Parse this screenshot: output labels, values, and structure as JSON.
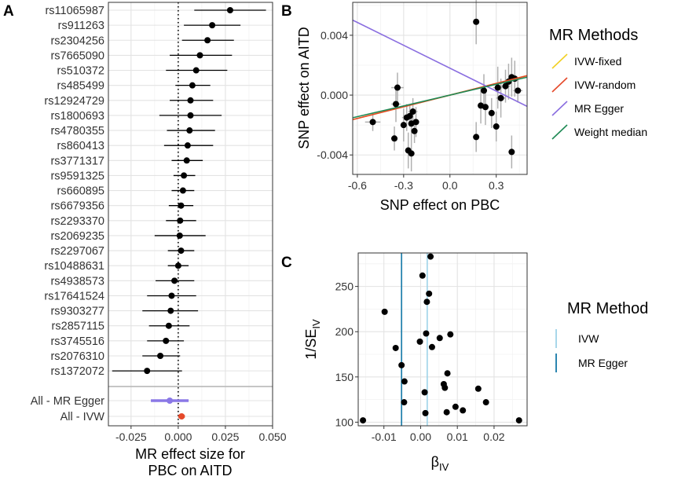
{
  "panel_labels": {
    "a": "A",
    "b": "B",
    "c": "C"
  },
  "colors": {
    "ivw_fixed": "#f2d024",
    "ivw_random": "#e5492a",
    "mr_egger_b": "#8a6ee0",
    "weight_median": "#1f8a55",
    "summary_egger": "#8a78e6",
    "summary_ivw": "#e5492a",
    "ivw_c": "#9ed3e8",
    "egger_c": "#1479a8"
  },
  "chart_data": [
    {
      "id": "forest",
      "type": "forest",
      "xlabel": "MR effect size for",
      "xlabel2": "PBC  on  AITD",
      "xlim": [
        -0.037,
        0.05
      ],
      "xticks": [
        -0.025,
        0.0,
        0.025,
        0.05
      ],
      "xtick_labels": [
        "-0.025",
        "0.000",
        "0.025",
        "0.050"
      ],
      "snps": [
        {
          "label": "rs11065987",
          "est": 0.0275,
          "lo": 0.0085,
          "hi": 0.0465
        },
        {
          "label": "rs911263",
          "est": 0.018,
          "lo": 0.003,
          "hi": 0.033
        },
        {
          "label": "rs2304256",
          "est": 0.0155,
          "lo": 0.002,
          "hi": 0.0295
        },
        {
          "label": "rs7665090",
          "est": 0.0115,
          "lo": -0.0045,
          "hi": 0.0285
        },
        {
          "label": "rs510372",
          "est": 0.0095,
          "lo": -0.0065,
          "hi": 0.026
        },
        {
          "label": "rs485499",
          "est": 0.0075,
          "lo": -0.0015,
          "hi": 0.017
        },
        {
          "label": "rs12924729",
          "est": 0.0065,
          "lo": -0.0045,
          "hi": 0.0185
        },
        {
          "label": "rs1800693",
          "est": 0.0065,
          "lo": -0.01,
          "hi": 0.023
        },
        {
          "label": "rs4780355",
          "est": 0.006,
          "lo": -0.006,
          "hi": 0.0195
        },
        {
          "label": "rs860413",
          "est": 0.005,
          "lo": -0.0075,
          "hi": 0.0185
        },
        {
          "label": "rs3771317",
          "est": 0.0045,
          "lo": -0.0035,
          "hi": 0.013
        },
        {
          "label": "rs9591325",
          "est": 0.003,
          "lo": -0.0025,
          "hi": 0.009
        },
        {
          "label": "rs660895",
          "est": 0.0025,
          "lo": -0.0035,
          "hi": 0.0085
        },
        {
          "label": "rs6679356",
          "est": 0.0015,
          "lo": -0.005,
          "hi": 0.008
        },
        {
          "label": "rs2293370",
          "est": 0.001,
          "lo": -0.0065,
          "hi": 0.0095
        },
        {
          "label": "rs2069235",
          "est": 0.0008,
          "lo": -0.0125,
          "hi": 0.0145
        },
        {
          "label": "rs2297067",
          "est": 0.0015,
          "lo": -0.0055,
          "hi": 0.0085
        },
        {
          "label": "rs10488631",
          "est": 0.0,
          "lo": -0.0055,
          "hi": 0.0055
        },
        {
          "label": "rs4938573",
          "est": -0.002,
          "lo": -0.012,
          "hi": 0.0085
        },
        {
          "label": "rs17641524",
          "est": -0.0035,
          "lo": -0.0165,
          "hi": 0.0095
        },
        {
          "label": "rs9303277",
          "est": -0.004,
          "lo": -0.019,
          "hi": 0.0105
        },
        {
          "label": "rs2857115",
          "est": -0.005,
          "lo": -0.0155,
          "hi": 0.006
        },
        {
          "label": "rs3745516",
          "est": -0.0065,
          "lo": -0.0165,
          "hi": 0.003
        },
        {
          "label": "rs2076310",
          "est": -0.0095,
          "lo": -0.019,
          "hi": 0.001
        },
        {
          "label": "rs1372072",
          "est": -0.0165,
          "lo": -0.035,
          "hi": 0.002
        }
      ],
      "summary": [
        {
          "label": "All - MR Egger",
          "est": -0.0045,
          "lo": -0.0145,
          "hi": 0.0055
        },
        {
          "label": "All - IVW",
          "est": 0.0018,
          "lo": 0.0,
          "hi": 0.0035
        }
      ]
    },
    {
      "id": "scatter",
      "type": "scatter",
      "xlabel": "SNP effect on PBC",
      "ylabel": "SNP effect on AITD",
      "xlim": [
        -0.63,
        0.5
      ],
      "ylim": [
        -0.0053,
        0.0062
      ],
      "xticks": [
        -0.6,
        -0.3,
        0.0,
        0.3
      ],
      "xtick_labels": [
        "-0.6",
        "-0.3",
        "0.0",
        "0.3"
      ],
      "yticks": [
        -0.004,
        0.0,
        0.004
      ],
      "ytick_labels": [
        "-0.004",
        "0.000",
        "0.004"
      ],
      "legend_title": "MR Methods",
      "methods": [
        {
          "name": "IVW-fixed",
          "color_key": "ivw_fixed",
          "slope": 0.0026,
          "intercept": 0.0
        },
        {
          "name": "IVW-random",
          "color_key": "ivw_random",
          "slope": 0.0026,
          "intercept": 0.0
        },
        {
          "name": "MR Egger",
          "color_key": "mr_egger_b",
          "slope": -0.0051,
          "intercept": 0.0018
        },
        {
          "name": "Weight median",
          "color_key": "weight_median",
          "slope": 0.0024,
          "intercept": 0.0
        }
      ],
      "points": [
        {
          "x": -0.5,
          "y": -0.0018,
          "xe": 0.05,
          "ye": 0.0006
        },
        {
          "x": -0.36,
          "y": -0.0029,
          "xe": 0.02,
          "ye": 0.0008
        },
        {
          "x": -0.35,
          "y": -0.0006,
          "xe": 0.03,
          "ye": 0.0012
        },
        {
          "x": -0.34,
          "y": 0.0005,
          "xe": 0.04,
          "ye": 0.001
        },
        {
          "x": -0.3,
          "y": -0.002,
          "xe": 0.02,
          "ye": 0.0011
        },
        {
          "x": -0.28,
          "y": -0.0015,
          "xe": 0.03,
          "ye": 0.0009
        },
        {
          "x": -0.27,
          "y": -0.0037,
          "xe": 0.02,
          "ye": 0.0012
        },
        {
          "x": -0.25,
          "y": -0.0039,
          "xe": 0.02,
          "ye": 0.0012
        },
        {
          "x": -0.25,
          "y": -0.0019,
          "xe": 0.02,
          "ye": 0.0008
        },
        {
          "x": -0.23,
          "y": -0.0024,
          "xe": 0.02,
          "ye": 0.0008
        },
        {
          "x": -0.22,
          "y": -0.0018,
          "xe": 0.02,
          "ye": 0.001
        },
        {
          "x": -0.24,
          "y": -0.0011,
          "xe": 0.03,
          "ye": 0.0009
        },
        {
          "x": -0.26,
          "y": -0.0014,
          "xe": 0.02,
          "ye": 0.0007
        },
        {
          "x": 0.17,
          "y": 0.0049,
          "xe": 0.02,
          "ye": 0.0015
        },
        {
          "x": 0.17,
          "y": -0.0028,
          "xe": 0.02,
          "ye": 0.001
        },
        {
          "x": 0.2,
          "y": -0.0007,
          "xe": 0.02,
          "ye": 0.0012
        },
        {
          "x": 0.23,
          "y": -0.0008,
          "xe": 0.02,
          "ye": 0.0012
        },
        {
          "x": 0.22,
          "y": 0.0003,
          "xe": 0.02,
          "ye": 0.0011
        },
        {
          "x": 0.27,
          "y": -0.0012,
          "xe": 0.02,
          "ye": 0.001
        },
        {
          "x": 0.3,
          "y": -0.0021,
          "xe": 0.02,
          "ye": 0.001
        },
        {
          "x": 0.31,
          "y": 0.0005,
          "xe": 0.03,
          "ye": 0.0014
        },
        {
          "x": 0.33,
          "y": -0.0002,
          "xe": 0.03,
          "ye": 0.0013
        },
        {
          "x": 0.36,
          "y": 0.0006,
          "xe": 0.03,
          "ye": 0.0011
        },
        {
          "x": 0.38,
          "y": 0.0009,
          "xe": 0.02,
          "ye": 0.0012
        },
        {
          "x": 0.4,
          "y": 0.0012,
          "xe": 0.02,
          "ye": 0.0013
        },
        {
          "x": 0.42,
          "y": 0.0011,
          "xe": 0.02,
          "ye": 0.0012
        },
        {
          "x": 0.44,
          "y": 0.0003,
          "xe": 0.03,
          "ye": 0.0008
        },
        {
          "x": 0.4,
          "y": -0.0038,
          "xe": 0.02,
          "ye": 0.0011
        }
      ]
    },
    {
      "id": "funnel",
      "type": "scatter",
      "xlabel": "β",
      "xlabel_sub": "IV",
      "ylabel": "1/SE",
      "ylabel_sub": "IV",
      "xlim": [
        -0.017,
        0.029
      ],
      "ylim": [
        96,
        287
      ],
      "xticks": [
        -0.01,
        0.0,
        0.01,
        0.02
      ],
      "xtick_labels": [
        "-0.01",
        "0.00",
        "0.01",
        "0.02"
      ],
      "yticks": [
        100,
        150,
        200,
        250
      ],
      "ytick_labels": [
        "100",
        "150",
        "200",
        "250"
      ],
      "legend_title": "MR Method",
      "methods": [
        {
          "name": "IVW",
          "color_key": "ivw_c",
          "beta": 0.0018
        },
        {
          "name": "MR Egger",
          "color_key": "egger_c",
          "beta": -0.0052
        }
      ],
      "points": [
        {
          "x": 0.0027,
          "y": 283
        },
        {
          "x": 0.0005,
          "y": 262
        },
        {
          "x": 0.0023,
          "y": 242
        },
        {
          "x": 0.0017,
          "y": 233
        },
        {
          "x": -0.0098,
          "y": 222
        },
        {
          "x": 0.0015,
          "y": 198
        },
        {
          "x": 0.0081,
          "y": 197
        },
        {
          "x": 0.0052,
          "y": 193
        },
        {
          "x": -0.0002,
          "y": 189
        },
        {
          "x": -0.0068,
          "y": 182
        },
        {
          "x": 0.0031,
          "y": 183
        },
        {
          "x": -0.0052,
          "y": 163
        },
        {
          "x": 0.0073,
          "y": 154
        },
        {
          "x": -0.0044,
          "y": 145
        },
        {
          "x": 0.0063,
          "y": 142
        },
        {
          "x": 0.0066,
          "y": 138
        },
        {
          "x": 0.0157,
          "y": 137
        },
        {
          "x": 0.0011,
          "y": 133
        },
        {
          "x": -0.0045,
          "y": 122
        },
        {
          "x": 0.0178,
          "y": 122
        },
        {
          "x": 0.0095,
          "y": 117
        },
        {
          "x": 0.0115,
          "y": 113
        },
        {
          "x": 0.0071,
          "y": 111
        },
        {
          "x": 0.0013,
          "y": 110
        },
        {
          "x": -0.0157,
          "y": 102
        },
        {
          "x": 0.0268,
          "y": 102
        }
      ]
    }
  ]
}
